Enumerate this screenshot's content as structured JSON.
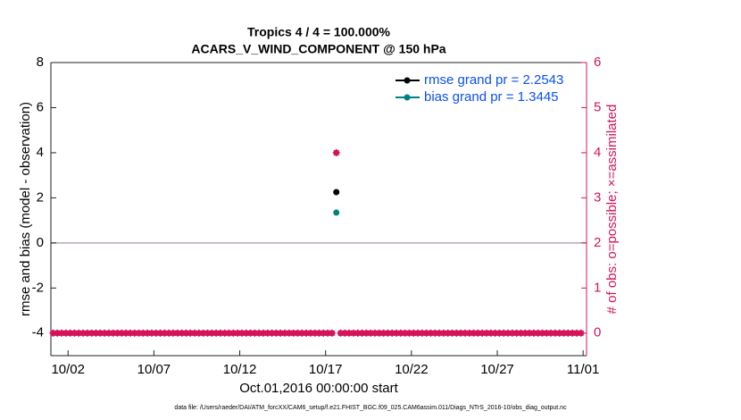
{
  "chart_data": {
    "type": "line",
    "title": "Tropics 4 / 4 = 100.000%",
    "subtitle": "ACARS_V_WIND_COMPONENT @ 150 hPa",
    "xlabel": "Oct.01,2016 00:00:00 start",
    "ylabel": "rmse and bias (model - observation)",
    "y2label": "# of obs: o=possible; ×=assimilated",
    "footer": "data file: /Users/raeder/DAI/ATM_forcXX/CAM6_setup/f.e21.FHIST_BGC.f09_025.CAM6assim.011/Diags_NTrS_2016-10/obs_diag_output.nc",
    "xlim": [
      0,
      31.2
    ],
    "xticks": [
      {
        "value": 1,
        "label": "10/02"
      },
      {
        "value": 6,
        "label": "10/07"
      },
      {
        "value": 11,
        "label": "10/12"
      },
      {
        "value": 16,
        "label": "10/17"
      },
      {
        "value": 21,
        "label": "10/22"
      },
      {
        "value": 26,
        "label": "10/27"
      },
      {
        "value": 31,
        "label": "11/01"
      }
    ],
    "ylim": [
      -5,
      8
    ],
    "yticks": [
      -4,
      -2,
      0,
      2,
      4,
      6,
      8
    ],
    "y2lim": [
      -0.5,
      6
    ],
    "y2ticks": [
      0,
      1,
      2,
      3,
      4,
      5,
      6
    ],
    "legend": "upper right",
    "legend_color": "#0a50f0",
    "y2_color": "#d4145a",
    "x": [
      0.125,
      0.375,
      0.625,
      0.875,
      1.125,
      1.375,
      1.625,
      1.875,
      2.125,
      2.375,
      2.625,
      2.875,
      3.125,
      3.375,
      3.625,
      3.875,
      4.125,
      4.375,
      4.625,
      4.875,
      5.125,
      5.375,
      5.625,
      5.875,
      6.125,
      6.375,
      6.625,
      6.875,
      7.125,
      7.375,
      7.625,
      7.875,
      8.125,
      8.375,
      8.625,
      8.875,
      9.125,
      9.375,
      9.625,
      9.875,
      10.125,
      10.375,
      10.625,
      10.875,
      11.125,
      11.375,
      11.625,
      11.875,
      12.125,
      12.375,
      12.625,
      12.875,
      13.125,
      13.375,
      13.625,
      13.875,
      14.125,
      14.375,
      14.625,
      14.875,
      15.125,
      15.375,
      15.625,
      15.875,
      16.125,
      16.375,
      16.625,
      16.875,
      17.125,
      17.375,
      17.625,
      17.875,
      18.125,
      18.375,
      18.625,
      18.875,
      19.125,
      19.375,
      19.625,
      19.875,
      20.125,
      20.375,
      20.625,
      20.875,
      21.125,
      21.375,
      21.625,
      21.875,
      22.125,
      22.375,
      22.625,
      22.875,
      23.125,
      23.375,
      23.625,
      23.875,
      24.125,
      24.375,
      24.625,
      24.875,
      25.125,
      25.375,
      25.625,
      25.875,
      26.125,
      26.375,
      26.625,
      26.875,
      27.125,
      27.375,
      27.625,
      27.875,
      28.125,
      28.375,
      28.625,
      28.875,
      29.125,
      29.375,
      29.625,
      29.875,
      30.125,
      30.375,
      30.625,
      30.875
    ],
    "series": [
      {
        "name": "rmse grand pr = 2.2543",
        "color": "#000000",
        "x": [
          16.625
        ],
        "values": [
          2.2543
        ]
      },
      {
        "name": "bias grand pr = 1.3445",
        "color": "#008080",
        "x": [
          16.625
        ],
        "values": [
          1.3445
        ]
      },
      {
        "color": "#d4145a",
        "axis": "y2",
        "marker": "circle",
        "values": [
          0,
          0,
          0,
          0,
          0,
          0,
          0,
          0,
          0,
          0,
          0,
          0,
          0,
          0,
          0,
          0,
          0,
          0,
          0,
          0,
          0,
          0,
          0,
          0,
          0,
          0,
          0,
          0,
          0,
          0,
          0,
          0,
          0,
          0,
          0,
          0,
          0,
          0,
          0,
          0,
          0,
          0,
          0,
          0,
          0,
          0,
          0,
          0,
          0,
          0,
          0,
          0,
          0,
          0,
          0,
          0,
          0,
          0,
          0,
          0,
          0,
          0,
          0,
          0,
          0,
          0,
          4,
          0,
          0,
          0,
          0,
          0,
          0,
          0,
          0,
          0,
          0,
          0,
          0,
          0,
          0,
          0,
          0,
          0,
          0,
          0,
          0,
          0,
          0,
          0,
          0,
          0,
          0,
          0,
          0,
          0,
          0,
          0,
          0,
          0,
          0,
          0,
          0,
          0,
          0,
          0,
          0,
          0,
          0,
          0,
          0,
          0,
          0,
          0,
          0,
          0,
          0,
          0,
          0,
          0,
          0,
          0,
          0,
          0
        ]
      },
      {
        "color": "#d4145a",
        "axis": "y2",
        "marker": "asterisk",
        "values": [
          0,
          0,
          0,
          0,
          0,
          0,
          0,
          0,
          0,
          0,
          0,
          0,
          0,
          0,
          0,
          0,
          0,
          0,
          0,
          0,
          0,
          0,
          0,
          0,
          0,
          0,
          0,
          0,
          0,
          0,
          0,
          0,
          0,
          0,
          0,
          0,
          0,
          0,
          0,
          0,
          0,
          0,
          0,
          0,
          0,
          0,
          0,
          0,
          0,
          0,
          0,
          0,
          0,
          0,
          0,
          0,
          0,
          0,
          0,
          0,
          0,
          0,
          0,
          0,
          0,
          0,
          4,
          0,
          0,
          0,
          0,
          0,
          0,
          0,
          0,
          0,
          0,
          0,
          0,
          0,
          0,
          0,
          0,
          0,
          0,
          0,
          0,
          0,
          0,
          0,
          0,
          0,
          0,
          0,
          0,
          0,
          0,
          0,
          0,
          0,
          0,
          0,
          0,
          0,
          0,
          0,
          0,
          0,
          0,
          0,
          0,
          0,
          0,
          0,
          0,
          0,
          0,
          0,
          0,
          0,
          0,
          0,
          0,
          0
        ]
      }
    ]
  }
}
